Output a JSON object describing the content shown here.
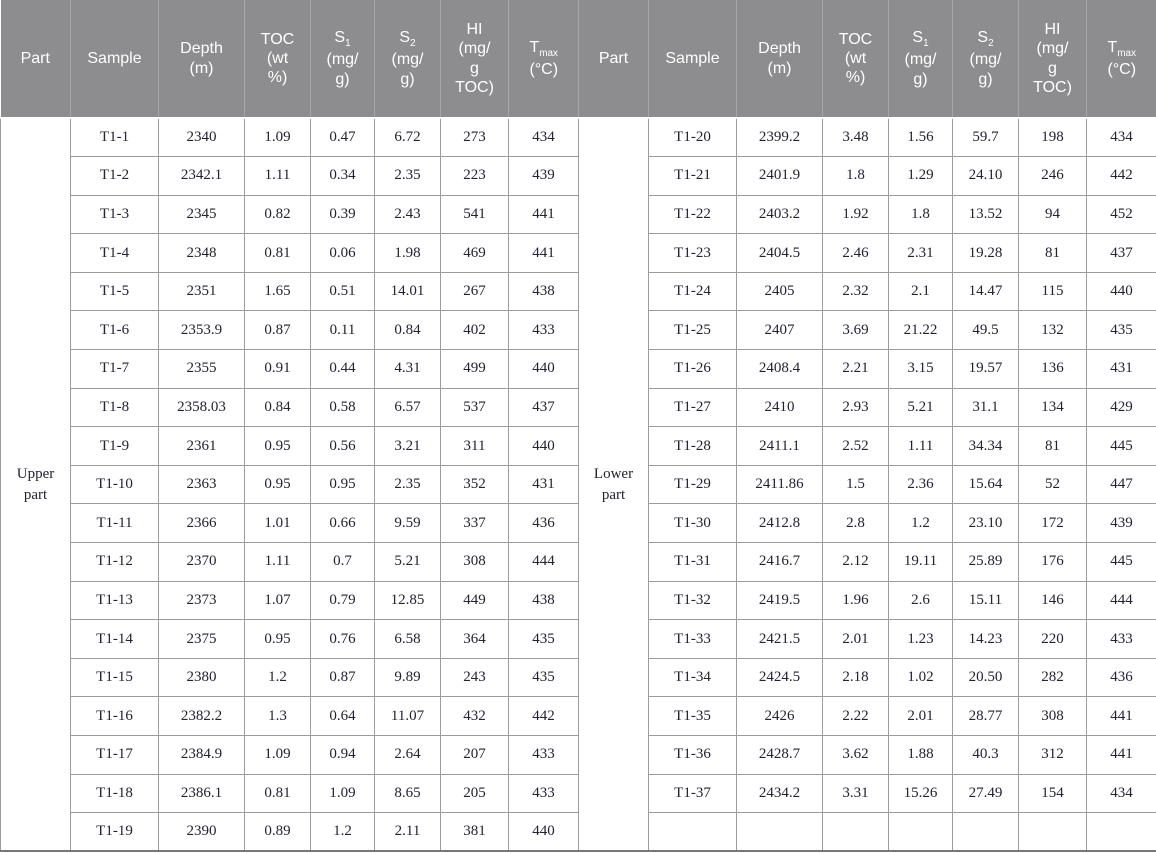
{
  "colors": {
    "header_bg": "#8d8d8f",
    "header_text": "#ffffff",
    "header_divider": "#a7a7a9",
    "grid_line": "#9b9b9b",
    "bottom_border": "#767678",
    "ink": "#222233",
    "page_bg": "#ffffff"
  },
  "table": {
    "columns": [
      {
        "key": "part",
        "lines": [
          {
            "text": "Part"
          }
        ]
      },
      {
        "key": "sample",
        "lines": [
          {
            "text": "Sample"
          }
        ]
      },
      {
        "key": "depth",
        "lines": [
          {
            "text": "Depth"
          },
          {
            "text": "(m)"
          }
        ]
      },
      {
        "key": "toc",
        "lines": [
          {
            "text": "TOC"
          },
          {
            "text": "(wt"
          },
          {
            "text": "%)"
          }
        ]
      },
      {
        "key": "s1",
        "lines": [
          {
            "text": "S",
            "sub": "1"
          },
          {
            "text": "(mg/"
          },
          {
            "text": "g)"
          }
        ]
      },
      {
        "key": "s2",
        "lines": [
          {
            "text": "S",
            "sub": "2"
          },
          {
            "text": "(mg/"
          },
          {
            "text": "g)"
          }
        ]
      },
      {
        "key": "hi",
        "lines": [
          {
            "text": "HI"
          },
          {
            "text": "(mg/"
          },
          {
            "text": "g"
          },
          {
            "text": "TOC)"
          }
        ]
      },
      {
        "key": "tmax",
        "lines": [
          {
            "text": "T",
            "sub": "max"
          },
          {
            "text": "(°C)"
          }
        ]
      }
    ],
    "halves": [
      {
        "part_label": "Upper part",
        "rows": [
          [
            "T1-1",
            "2340",
            "1.09",
            "0.47",
            "6.72",
            "273",
            "434"
          ],
          [
            "T1-2",
            "2342.1",
            "1.11",
            "0.34",
            "2.35",
            "223",
            "439"
          ],
          [
            "T1-3",
            "2345",
            "0.82",
            "0.39",
            "2.43",
            "541",
            "441"
          ],
          [
            "T1-4",
            "2348",
            "0.81",
            "0.06",
            "1.98",
            "469",
            "441"
          ],
          [
            "T1-5",
            "2351",
            "1.65",
            "0.51",
            "14.01",
            "267",
            "438"
          ],
          [
            "T1-6",
            "2353.9",
            "0.87",
            "0.11",
            "0.84",
            "402",
            "433"
          ],
          [
            "T1-7",
            "2355",
            "0.91",
            "0.44",
            "4.31",
            "499",
            "440"
          ],
          [
            "T1-8",
            "2358.03",
            "0.84",
            "0.58",
            "6.57",
            "537",
            "437"
          ],
          [
            "T1-9",
            "2361",
            "0.95",
            "0.56",
            "3.21",
            "311",
            "440"
          ],
          [
            "T1-10",
            "2363",
            "0.95",
            "0.95",
            "2.35",
            "352",
            "431"
          ],
          [
            "T1-11",
            "2366",
            "1.01",
            "0.66",
            "9.59",
            "337",
            "436"
          ],
          [
            "T1-12",
            "2370",
            "1.11",
            "0.7",
            "5.21",
            "308",
            "444"
          ],
          [
            "T1-13",
            "2373",
            "1.07",
            "0.79",
            "12.85",
            "449",
            "438"
          ],
          [
            "T1-14",
            "2375",
            "0.95",
            "0.76",
            "6.58",
            "364",
            "435"
          ],
          [
            "T1-15",
            "2380",
            "1.2",
            "0.87",
            "9.89",
            "243",
            "435"
          ],
          [
            "T1-16",
            "2382.2",
            "1.3",
            "0.64",
            "11.07",
            "432",
            "442"
          ],
          [
            "T1-17",
            "2384.9",
            "1.09",
            "0.94",
            "2.64",
            "207",
            "433"
          ],
          [
            "T1-18",
            "2386.1",
            "0.81",
            "1.09",
            "8.65",
            "205",
            "433"
          ],
          [
            "T1-19",
            "2390",
            "0.89",
            "1.2",
            "2.11",
            "381",
            "440"
          ]
        ]
      },
      {
        "part_label": "Lower part",
        "rows": [
          [
            "T1-20",
            "2399.2",
            "3.48",
            "1.56",
            "59.7",
            "198",
            "434"
          ],
          [
            "T1-21",
            "2401.9",
            "1.8",
            "1.29",
            "24.10",
            "246",
            "442"
          ],
          [
            "T1-22",
            "2403.2",
            "1.92",
            "1.8",
            "13.52",
            "94",
            "452"
          ],
          [
            "T1-23",
            "2404.5",
            "2.46",
            "2.31",
            "19.28",
            "81",
            "437"
          ],
          [
            "T1-24",
            "2405",
            "2.32",
            "2.1",
            "14.47",
            "115",
            "440"
          ],
          [
            "T1-25",
            "2407",
            "3.69",
            "21.22",
            "49.5",
            "132",
            "435"
          ],
          [
            "T1-26",
            "2408.4",
            "2.21",
            "3.15",
            "19.57",
            "136",
            "431"
          ],
          [
            "T1-27",
            "2410",
            "2.93",
            "5.21",
            "31.1",
            "134",
            "429"
          ],
          [
            "T1-28",
            "2411.1",
            "2.52",
            "1.11",
            "34.34",
            "81",
            "445"
          ],
          [
            "T1-29",
            "2411.86",
            "1.5",
            "2.36",
            "15.64",
            "52",
            "447"
          ],
          [
            "T1-30",
            "2412.8",
            "2.8",
            "1.2",
            "23.10",
            "172",
            "439"
          ],
          [
            "T1-31",
            "2416.7",
            "2.12",
            "19.11",
            "25.89",
            "176",
            "445"
          ],
          [
            "T1-32",
            "2419.5",
            "1.96",
            "2.6",
            "15.11",
            "146",
            "444"
          ],
          [
            "T1-33",
            "2421.5",
            "2.01",
            "1.23",
            "14.23",
            "220",
            "433"
          ],
          [
            "T1-34",
            "2424.5",
            "2.18",
            "1.02",
            "20.50",
            "282",
            "436"
          ],
          [
            "T1-35",
            "2426",
            "2.22",
            "2.01",
            "28.77",
            "308",
            "441"
          ],
          [
            "T1-36",
            "2428.7",
            "3.62",
            "1.88",
            "40.3",
            "312",
            "441"
          ],
          [
            "T1-37",
            "2434.2",
            "3.31",
            "15.26",
            "27.49",
            "154",
            "434"
          ],
          [
            "",
            "",
            "",
            "",
            "",
            "",
            ""
          ]
        ]
      }
    ]
  }
}
